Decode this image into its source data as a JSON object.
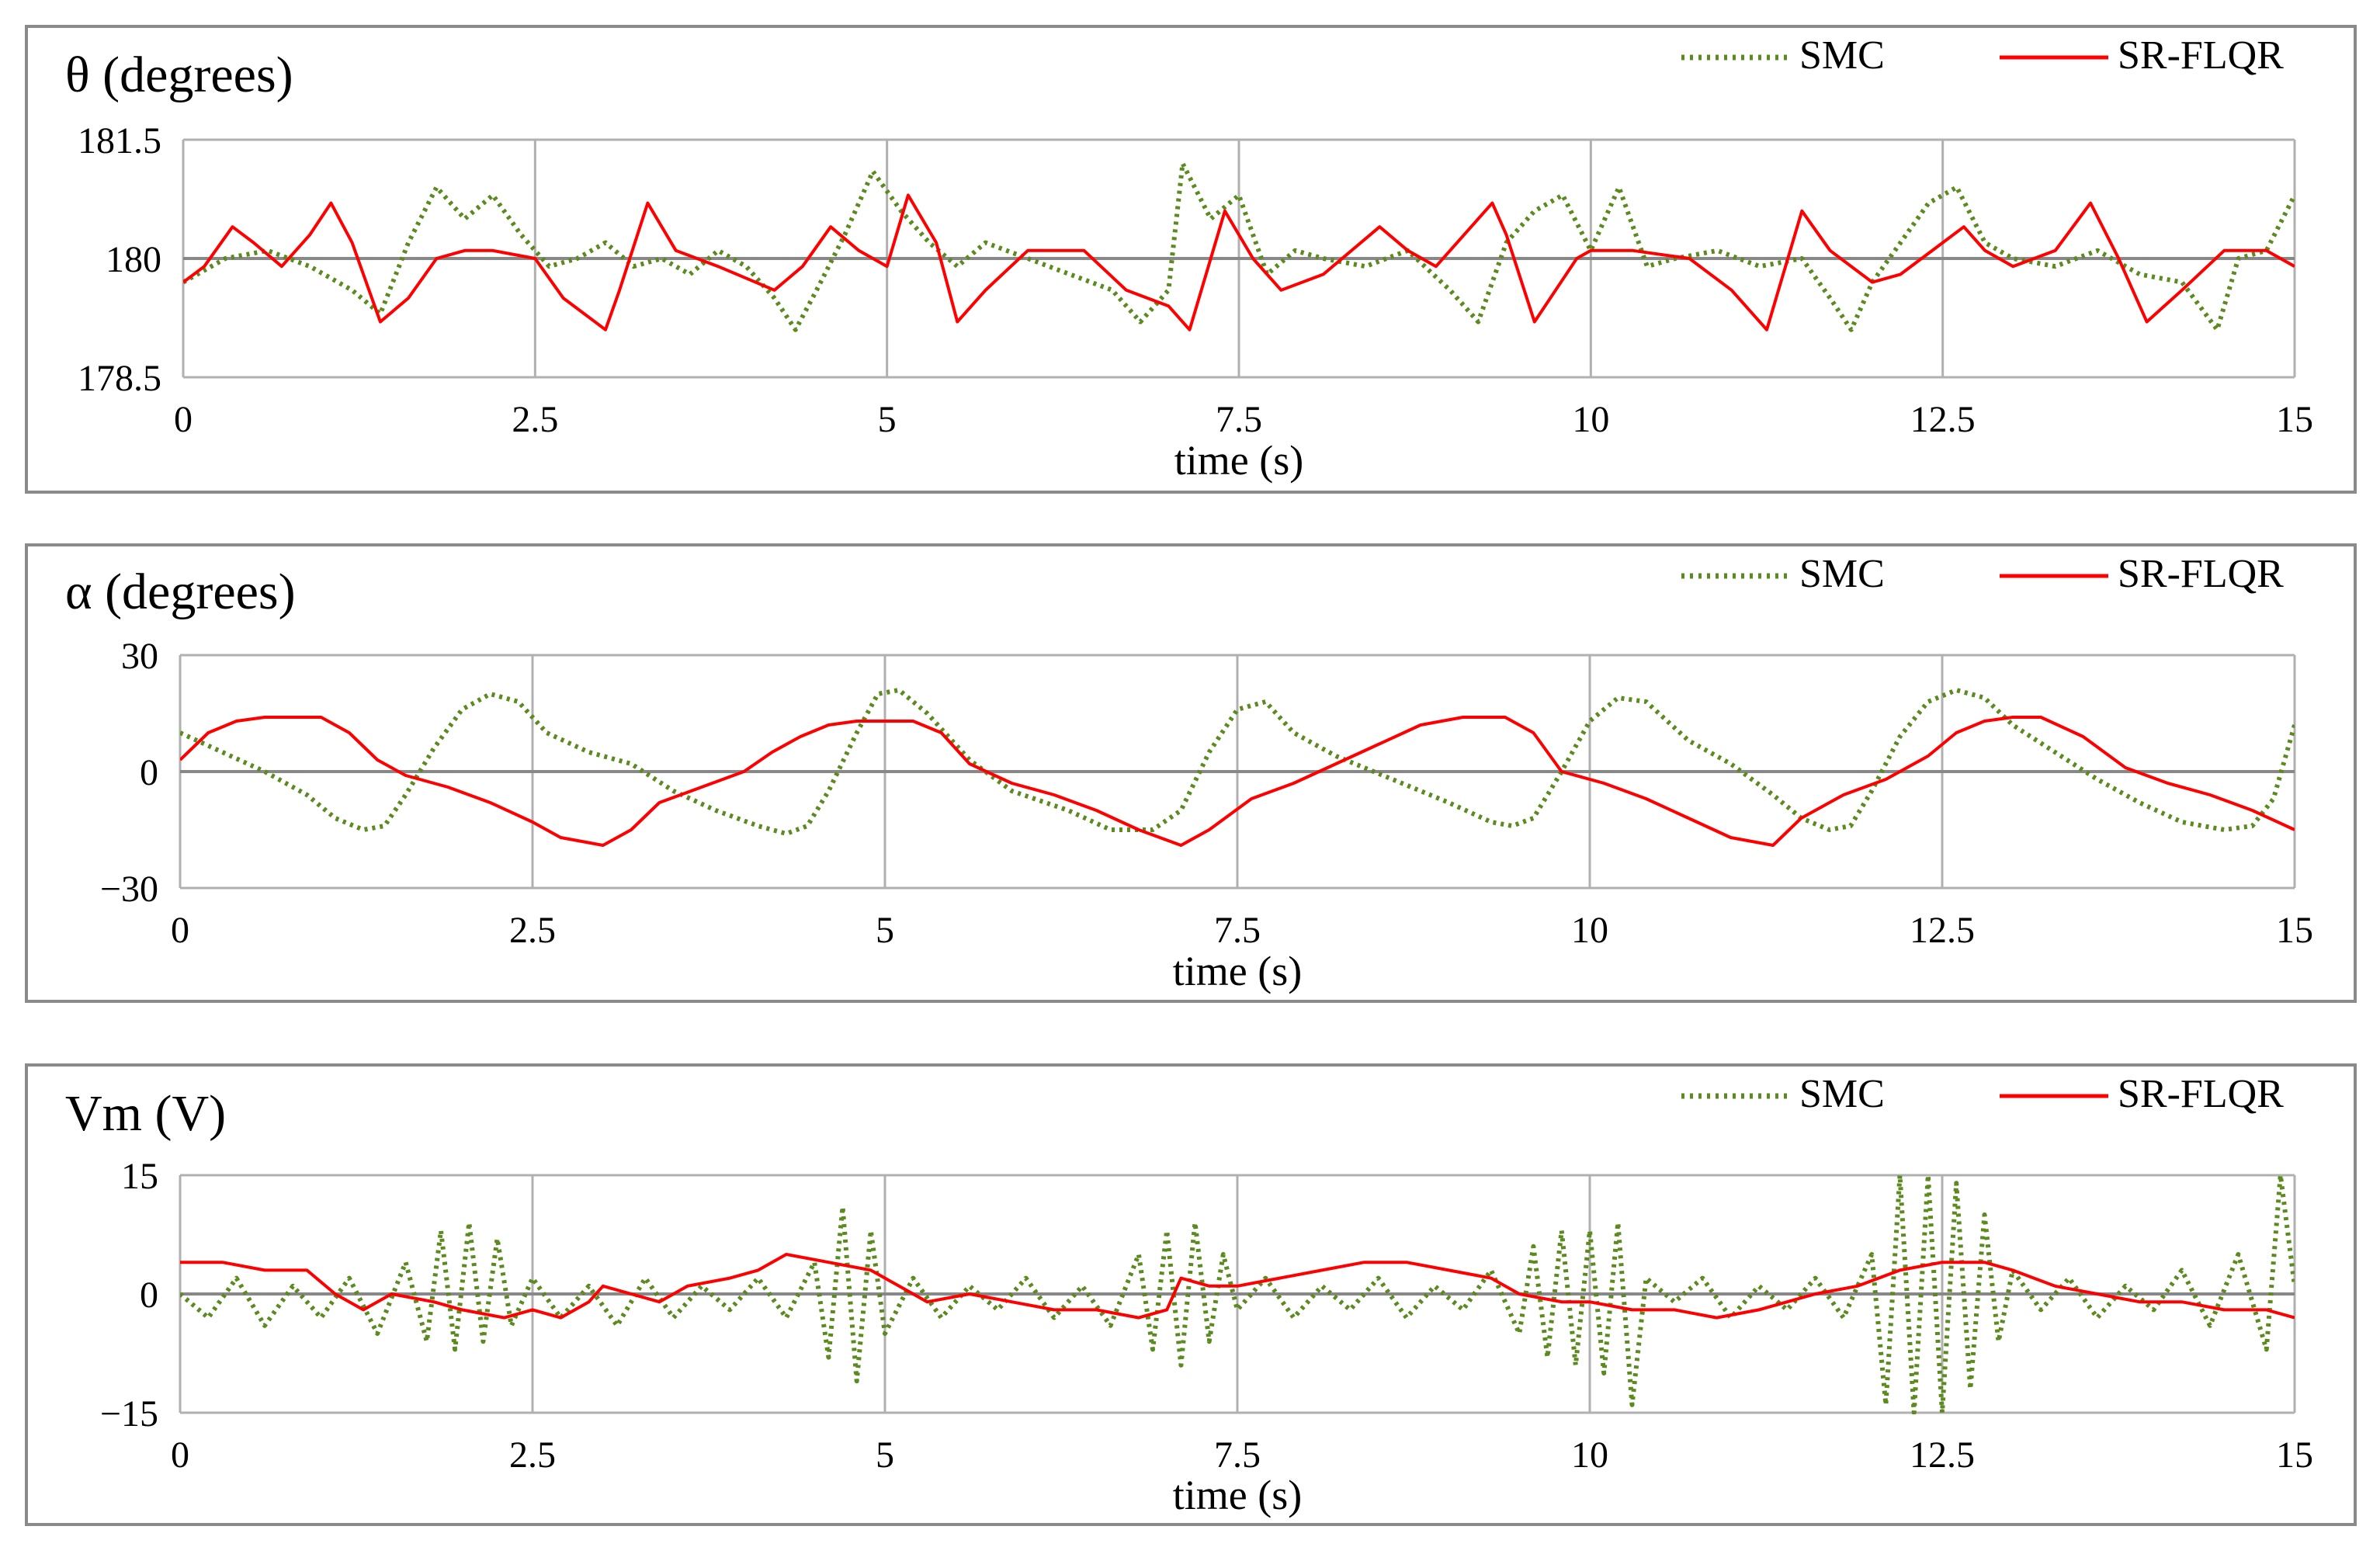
{
  "colors": {
    "smc": "#5b8a1e",
    "srflqr": "#ff0000",
    "grid": "#b0b0b0",
    "axis": "#888888"
  },
  "legend": {
    "smc": "SMC",
    "srflqr": "SR-FLQR"
  },
  "xlabel": "time (s)",
  "chart_data": [
    {
      "type": "line",
      "title": "θ (degrees)",
      "xlabel": "time (s)",
      "ylabel": "θ (degrees)",
      "xlim": [
        0,
        15
      ],
      "ylim": [
        178.5,
        181.5
      ],
      "xticks": [
        0,
        2.5,
        5,
        7.5,
        10,
        12.5,
        15
      ],
      "xtick_labels": [
        "0",
        "2.5",
        "5",
        "7.5",
        "10",
        "12.5",
        "15"
      ],
      "yticks": [
        178.5,
        180,
        181.5
      ],
      "ytick_labels": [
        "178.5",
        "180",
        "181.5"
      ],
      "grid": true,
      "legend_position": "top-right",
      "series": [
        {
          "name": "SMC",
          "style": "dotted",
          "x": [
            0,
            0.3,
            0.6,
            0.9,
            1.2,
            1.4,
            1.6,
            1.8,
            2.0,
            2.2,
            2.4,
            2.6,
            2.8,
            3.0,
            3.2,
            3.4,
            3.6,
            3.8,
            4.0,
            4.2,
            4.35,
            4.5,
            4.7,
            4.9,
            5.1,
            5.3,
            5.5,
            5.7,
            6.0,
            6.3,
            6.6,
            6.8,
            7.0,
            7.1,
            7.3,
            7.5,
            7.7,
            7.9,
            8.1,
            8.4,
            8.7,
            9.0,
            9.2,
            9.4,
            9.6,
            9.8,
            10.0,
            10.2,
            10.4,
            10.6,
            10.9,
            11.2,
            11.5,
            11.7,
            11.85,
            12.0,
            12.2,
            12.4,
            12.6,
            12.8,
            13.0,
            13.3,
            13.6,
            13.9,
            14.2,
            14.45,
            14.6,
            14.8,
            15.0
          ],
          "y": [
            179.7,
            180.0,
            180.1,
            179.9,
            179.6,
            179.3,
            180.2,
            180.9,
            180.5,
            180.8,
            180.3,
            179.9,
            180.0,
            180.2,
            179.9,
            180.0,
            179.8,
            180.1,
            179.9,
            179.5,
            179.1,
            179.6,
            180.3,
            181.1,
            180.6,
            180.2,
            179.9,
            180.2,
            180.0,
            179.8,
            179.6,
            179.2,
            179.6,
            181.2,
            180.5,
            180.8,
            179.8,
            180.1,
            180.0,
            179.9,
            180.1,
            179.6,
            179.2,
            180.2,
            180.6,
            180.8,
            180.1,
            180.9,
            179.9,
            180.0,
            180.1,
            179.9,
            180.0,
            179.5,
            179.1,
            179.7,
            180.2,
            180.7,
            180.9,
            180.2,
            180.0,
            179.9,
            180.1,
            179.8,
            179.7,
            179.1,
            180.0,
            180.1,
            180.8
          ]
        },
        {
          "name": "SR-FLQR",
          "style": "solid",
          "x": [
            0,
            0.15,
            0.35,
            0.5,
            0.7,
            0.9,
            1.05,
            1.2,
            1.4,
            1.6,
            1.8,
            2.0,
            2.2,
            2.5,
            2.7,
            3.0,
            3.1,
            3.3,
            3.5,
            3.8,
            4.2,
            4.4,
            4.6,
            4.8,
            5.0,
            5.15,
            5.35,
            5.5,
            5.7,
            6.0,
            6.4,
            6.7,
            7.0,
            7.15,
            7.4,
            7.6,
            7.8,
            8.1,
            8.5,
            8.7,
            8.9,
            9.1,
            9.3,
            9.4,
            9.6,
            9.75,
            9.9,
            10.0,
            10.3,
            10.7,
            11.0,
            11.25,
            11.5,
            11.7,
            12.0,
            12.2,
            12.5,
            12.65,
            12.8,
            13.0,
            13.3,
            13.55,
            13.75,
            13.95,
            14.2,
            14.5,
            14.8,
            15.0
          ],
          "y": [
            179.7,
            179.9,
            180.4,
            180.2,
            179.9,
            180.3,
            180.7,
            180.2,
            179.2,
            179.5,
            180.0,
            180.1,
            180.1,
            180.0,
            179.5,
            179.1,
            179.6,
            180.7,
            180.1,
            179.9,
            179.6,
            179.9,
            180.4,
            180.1,
            179.9,
            180.8,
            180.2,
            179.2,
            179.6,
            180.1,
            180.1,
            179.6,
            179.4,
            179.1,
            180.6,
            180.0,
            179.6,
            179.8,
            180.4,
            180.1,
            179.9,
            180.3,
            180.7,
            180.3,
            179.2,
            179.6,
            180.0,
            180.1,
            180.1,
            180.0,
            179.6,
            179.1,
            180.6,
            180.1,
            179.7,
            179.8,
            180.2,
            180.4,
            180.1,
            179.9,
            180.1,
            180.7,
            180.0,
            179.2,
            179.6,
            180.1,
            180.1,
            179.9
          ]
        }
      ]
    },
    {
      "type": "line",
      "title": "α (degrees)",
      "xlabel": "time (s)",
      "ylabel": "α (degrees)",
      "xlim": [
        0,
        15
      ],
      "ylim": [
        -30,
        30
      ],
      "xticks": [
        0,
        2.5,
        5,
        7.5,
        10,
        12.5,
        15
      ],
      "xtick_labels": [
        "0",
        "2.5",
        "5",
        "7.5",
        "10",
        "12.5",
        "15"
      ],
      "yticks": [
        -30,
        0,
        30
      ],
      "ytick_labels": [
        "−30",
        "0",
        "30"
      ],
      "grid": true,
      "legend_position": "top-right",
      "series": [
        {
          "name": "SMC",
          "style": "dotted",
          "x": [
            0,
            0.3,
            0.6,
            0.9,
            1.1,
            1.3,
            1.45,
            1.6,
            1.8,
            2.0,
            2.2,
            2.4,
            2.6,
            2.9,
            3.2,
            3.5,
            3.8,
            4.1,
            4.3,
            4.45,
            4.6,
            4.8,
            4.95,
            5.1,
            5.3,
            5.6,
            5.9,
            6.3,
            6.6,
            6.9,
            7.1,
            7.3,
            7.5,
            7.7,
            7.9,
            8.2,
            8.6,
            9.0,
            9.3,
            9.45,
            9.6,
            9.8,
            10.0,
            10.2,
            10.4,
            10.7,
            11.0,
            11.3,
            11.5,
            11.7,
            11.85,
            12.0,
            12.2,
            12.4,
            12.6,
            12.8,
            13.0,
            13.3,
            13.6,
            13.9,
            14.2,
            14.5,
            14.7,
            14.85,
            15.0
          ],
          "y": [
            10,
            5,
            0,
            -6,
            -12,
            -15,
            -14,
            -6,
            6,
            16,
            20,
            18,
            10,
            5,
            2,
            -5,
            -10,
            -14,
            -16,
            -14,
            -5,
            10,
            20,
            21,
            15,
            3,
            -5,
            -10,
            -15,
            -15,
            -10,
            5,
            16,
            18,
            10,
            4,
            -2,
            -8,
            -13,
            -14,
            -12,
            0,
            13,
            19,
            18,
            8,
            2,
            -6,
            -12,
            -15,
            -14,
            -5,
            9,
            18,
            21,
            19,
            12,
            5,
            -2,
            -8,
            -13,
            -15,
            -14,
            -7,
            12
          ]
        },
        {
          "name": "SR-FLQR",
          "style": "solid",
          "x": [
            0,
            0.2,
            0.4,
            0.6,
            0.8,
            1.0,
            1.2,
            1.4,
            1.6,
            1.9,
            2.2,
            2.5,
            2.7,
            3.0,
            3.2,
            3.4,
            3.7,
            4.0,
            4.2,
            4.4,
            4.6,
            4.8,
            5.0,
            5.2,
            5.4,
            5.6,
            5.9,
            6.2,
            6.5,
            6.8,
            7.1,
            7.3,
            7.6,
            7.9,
            8.2,
            8.5,
            8.8,
            9.1,
            9.4,
            9.6,
            9.8,
            10.1,
            10.4,
            10.7,
            11.0,
            11.3,
            11.5,
            11.8,
            12.1,
            12.4,
            12.6,
            12.8,
            13.0,
            13.2,
            13.5,
            13.8,
            14.1,
            14.4,
            14.7,
            15.0
          ],
          "y": [
            3,
            10,
            13,
            14,
            14,
            14,
            10,
            3,
            -1,
            -4,
            -8,
            -13,
            -17,
            -19,
            -15,
            -8,
            -4,
            0,
            5,
            9,
            12,
            13,
            13,
            13,
            10,
            2,
            -3,
            -6,
            -10,
            -15,
            -19,
            -15,
            -7,
            -3,
            2,
            7,
            12,
            14,
            14,
            10,
            0,
            -3,
            -7,
            -12,
            -17,
            -19,
            -12,
            -6,
            -2,
            4,
            10,
            13,
            14,
            14,
            9,
            1,
            -3,
            -6,
            -10,
            -15
          ]
        }
      ]
    },
    {
      "type": "line",
      "title": "Vm (V)",
      "xlabel": "time (s)",
      "ylabel": "Vm (V)",
      "xlim": [
        0,
        15
      ],
      "ylim": [
        -15,
        15
      ],
      "xticks": [
        0,
        2.5,
        5,
        7.5,
        10,
        12.5,
        15
      ],
      "xtick_labels": [
        "0",
        "2.5",
        "5",
        "7.5",
        "10",
        "12.5",
        "15"
      ],
      "yticks": [
        -15,
        0,
        15
      ],
      "ytick_labels": [
        "−15",
        "0",
        "15"
      ],
      "grid": true,
      "legend_position": "top-right",
      "series": [
        {
          "name": "SMC",
          "style": "dotted",
          "x": [
            0,
            0.2,
            0.4,
            0.6,
            0.8,
            1.0,
            1.2,
            1.4,
            1.6,
            1.75,
            1.85,
            1.95,
            2.05,
            2.15,
            2.25,
            2.35,
            2.5,
            2.7,
            2.9,
            3.1,
            3.3,
            3.5,
            3.7,
            3.9,
            4.1,
            4.3,
            4.5,
            4.6,
            4.7,
            4.8,
            4.9,
            5.0,
            5.2,
            5.4,
            5.6,
            5.8,
            6.0,
            6.2,
            6.4,
            6.6,
            6.8,
            6.9,
            7.0,
            7.1,
            7.2,
            7.3,
            7.4,
            7.5,
            7.7,
            7.9,
            8.1,
            8.3,
            8.5,
            8.7,
            8.9,
            9.1,
            9.3,
            9.5,
            9.6,
            9.7,
            9.8,
            9.9,
            10.0,
            10.1,
            10.2,
            10.3,
            10.4,
            10.6,
            10.8,
            11.0,
            11.2,
            11.4,
            11.6,
            11.8,
            12.0,
            12.1,
            12.2,
            12.3,
            12.4,
            12.5,
            12.6,
            12.7,
            12.8,
            12.9,
            13.0,
            13.2,
            13.4,
            13.6,
            13.8,
            14.0,
            14.2,
            14.4,
            14.6,
            14.8,
            14.9,
            15.0
          ],
          "y": [
            0,
            -3,
            2,
            -4,
            1,
            -3,
            2,
            -5,
            4,
            -6,
            8,
            -7,
            9,
            -6,
            7,
            -4,
            2,
            -3,
            1,
            -4,
            2,
            -3,
            1,
            -2,
            2,
            -3,
            4,
            -8,
            11,
            -11,
            8,
            -5,
            2,
            -3,
            1,
            -2,
            2,
            -3,
            1,
            -4,
            5,
            -7,
            8,
            -9,
            9,
            -6,
            5,
            -2,
            2,
            -3,
            1,
            -2,
            2,
            -3,
            1,
            -2,
            3,
            -5,
            6,
            -8,
            8,
            -9,
            8,
            -10,
            9,
            -14,
            2,
            -1,
            2,
            -3,
            1,
            -2,
            2,
            -3,
            5,
            -14,
            15,
            -15,
            15,
            -15,
            14,
            -12,
            10,
            -6,
            3,
            -2,
            2,
            -3,
            1,
            -2,
            3,
            -4,
            5,
            -7,
            15,
            1
          ]
        },
        {
          "name": "SR-FLQR",
          "style": "solid",
          "x": [
            0,
            0.3,
            0.6,
            0.9,
            1.1,
            1.3,
            1.5,
            1.8,
            2.0,
            2.3,
            2.5,
            2.7,
            2.9,
            3.0,
            3.2,
            3.4,
            3.6,
            3.9,
            4.1,
            4.3,
            4.6,
            4.9,
            5.1,
            5.3,
            5.6,
            5.9,
            6.2,
            6.5,
            6.8,
            7.0,
            7.1,
            7.3,
            7.5,
            7.8,
            8.1,
            8.4,
            8.7,
            9.0,
            9.3,
            9.5,
            9.8,
            10.0,
            10.3,
            10.6,
            10.9,
            11.2,
            11.4,
            11.6,
            11.9,
            12.2,
            12.5,
            12.8,
            13.0,
            13.3,
            13.6,
            13.9,
            14.2,
            14.5,
            14.8,
            15.0
          ],
          "y": [
            4,
            4,
            3,
            3,
            0,
            -2,
            0,
            -1,
            -2,
            -3,
            -2,
            -3,
            -1,
            1,
            0,
            -1,
            1,
            2,
            3,
            5,
            4,
            3,
            1,
            -1,
            0,
            -1,
            -2,
            -2,
            -3,
            -2,
            2,
            1,
            1,
            2,
            3,
            4,
            4,
            3,
            2,
            0,
            -1,
            -1,
            -2,
            -2,
            -3,
            -2,
            -1,
            0,
            1,
            3,
            4,
            4,
            3,
            1,
            0,
            -1,
            -1,
            -2,
            -2,
            -3
          ]
        }
      ]
    }
  ]
}
